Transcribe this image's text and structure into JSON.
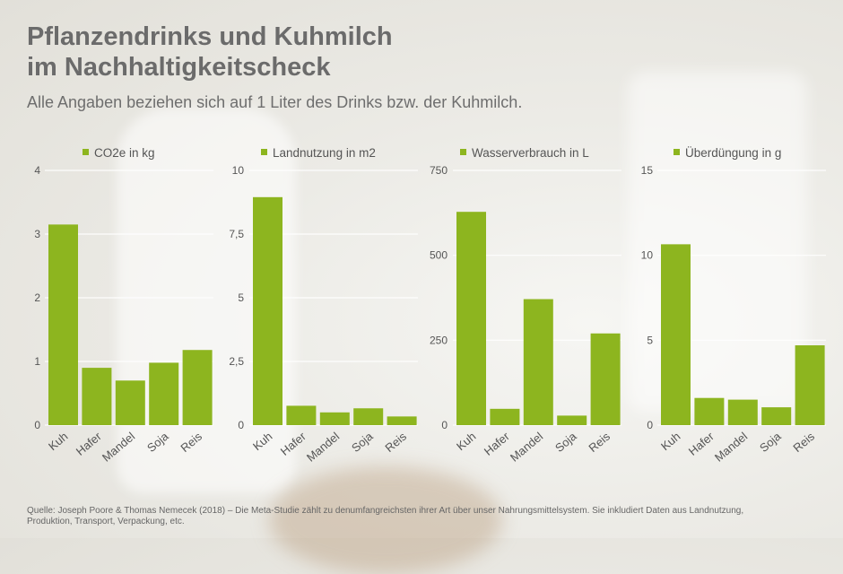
{
  "header": {
    "title_line1": "Pflanzendrinks und Kuhmilch",
    "title_line2": "im Nachhaltigkeitscheck",
    "subtitle": "Alle Angaben beziehen sich auf 1 Liter des Drinks bzw. der Kuhmilch."
  },
  "colors": {
    "bar": "#8db51f",
    "gridline": "#ffffff",
    "text": "#555555"
  },
  "chart_data": [
    {
      "type": "bar",
      "legend": "CO2e in kg",
      "categories": [
        "Kuh",
        "Hafer",
        "Mandel",
        "Soja",
        "Reis"
      ],
      "values": [
        3.15,
        0.9,
        0.7,
        0.98,
        1.18
      ],
      "ylim": [
        0,
        4
      ],
      "yticks": [
        "0",
        "1",
        "2",
        "3",
        "4"
      ],
      "ytick_values": [
        0,
        1,
        2,
        3,
        4
      ]
    },
    {
      "type": "bar",
      "legend": "Landnutzung in m2",
      "categories": [
        "Kuh",
        "Hafer",
        "Mandel",
        "Soja",
        "Reis"
      ],
      "values": [
        8.95,
        0.76,
        0.5,
        0.66,
        0.34
      ],
      "ylim": [
        0,
        10
      ],
      "yticks": [
        "0",
        "2,5",
        "5",
        "7,5",
        "10"
      ],
      "ytick_values": [
        0,
        2.5,
        5,
        7.5,
        10
      ]
    },
    {
      "type": "bar",
      "legend": "Wasserverbrauch in L",
      "categories": [
        "Kuh",
        "Hafer",
        "Mandel",
        "Soja",
        "Reis"
      ],
      "values": [
        628,
        48,
        371,
        28,
        270
      ],
      "ylim": [
        0,
        750
      ],
      "yticks": [
        "0",
        "250",
        "500",
        "750"
      ],
      "ytick_values": [
        0,
        250,
        500,
        750
      ]
    },
    {
      "type": "bar",
      "legend": "Überdüngung in g",
      "categories": [
        "Kuh",
        "Hafer",
        "Mandel",
        "Soja",
        "Reis"
      ],
      "values": [
        10.65,
        1.6,
        1.5,
        1.05,
        4.7
      ],
      "ylim": [
        0,
        15
      ],
      "yticks": [
        "0",
        "5",
        "10",
        "15"
      ],
      "ytick_values": [
        0,
        5,
        10,
        15
      ]
    }
  ],
  "source": "Quelle: Joseph Poore & Thomas Nemecek (2018) – Die Meta-Studie zählt zu denumfangreichsten ihrer Art über unser Nahrungsmittelsystem. Sie inkludiert Daten aus Landnutzung, Produktion, Transport, Verpackung, etc."
}
